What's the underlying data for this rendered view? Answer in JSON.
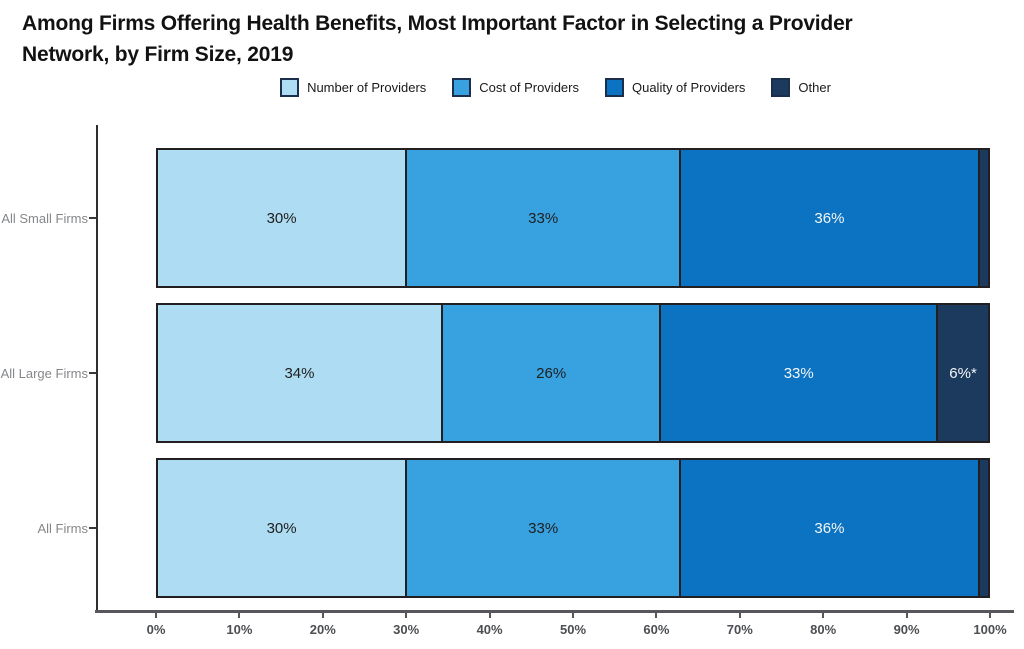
{
  "header": {
    "title_line1": "Among Firms Offering Health Benefits, Most Important Factor in Selecting a Provider",
    "title_line2": "Network, by Firm Size, 2019"
  },
  "legend": {
    "items": [
      {
        "label": "Number of Providers",
        "color": "#AEDCF3"
      },
      {
        "label": "Cost of Providers",
        "color": "#38A1DF"
      },
      {
        "label": "Quality of Providers",
        "color": "#0C73C2"
      },
      {
        "label": "Other",
        "color": "#1C3A5E"
      }
    ]
  },
  "colors": {
    "series": [
      "#AEDCF3",
      "#38A1DF",
      "#0C73C2",
      "#1C3A5E"
    ],
    "segment_border": "#231F20",
    "axis_line": "#55575B",
    "tick_label": "#4C4E52",
    "category_label": "#85878A",
    "label_dark": "#1F1F1F",
    "label_light": "#F4F6F8"
  },
  "chart_data": {
    "type": "bar",
    "orientation": "horizontal",
    "stacked": true,
    "title": "Among Firms Offering Health Benefits, Most Important Factor in Selecting a Provider Network, by Firm Size, 2019",
    "xlabel": "",
    "ylabel": "",
    "xlim": [
      0,
      100
    ],
    "x_ticks": [
      "0%",
      "10%",
      "20%",
      "30%",
      "40%",
      "50%",
      "60%",
      "70%",
      "80%",
      "90%",
      "100%"
    ],
    "grid": false,
    "legend_position": "top",
    "categories": [
      "All Small Firms",
      "All Large Firms",
      "All Firms"
    ],
    "segments": [
      "Number of Providers",
      "Cost of Providers",
      "Quality of Providers",
      "Other"
    ],
    "rows": [
      {
        "category": "All Small Firms",
        "values": [
          30,
          33,
          36,
          1
        ],
        "labels": [
          "30%",
          "33%",
          "36%",
          ""
        ]
      },
      {
        "category": "All Large Firms",
        "values": [
          34,
          26,
          33,
          6
        ],
        "labels": [
          "34%",
          "26%",
          "33%",
          "6%*"
        ]
      },
      {
        "category": "All Firms",
        "values": [
          30,
          33,
          36,
          1
        ],
        "labels": [
          "30%",
          "33%",
          "36%",
          ""
        ]
      }
    ],
    "label_light_segments": [
      2,
      3
    ]
  }
}
